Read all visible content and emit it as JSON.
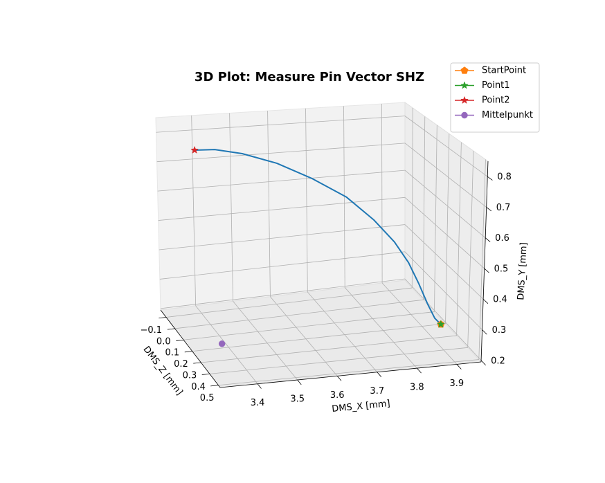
{
  "chart_data": {
    "type": "line3d",
    "title": "3D Plot: Measure Pin Vector SHZ",
    "xlabel": "DMS_X [mm]",
    "ylabel": "DMS_Y [mm]",
    "zlabel": "DMS_Z [mm]",
    "xlim": [
      3.306,
      3.961
    ],
    "ylim": [
      0.195,
      0.85
    ],
    "zlim": [
      -0.164,
      0.52
    ],
    "xticks": [
      3.4,
      3.5,
      3.6,
      3.7,
      3.8,
      3.9
    ],
    "yticks": [
      0.2,
      0.3,
      0.4,
      0.5,
      0.6,
      0.7,
      0.8
    ],
    "zticks": [
      {
        "value": -0.1,
        "label": "−0.1"
      },
      {
        "value": 0,
        "label": "0.0"
      },
      0.1,
      0.2,
      0.3,
      0.4,
      0.5
    ],
    "grid": true,
    "legend_loc": "upper right",
    "series": [
      {
        "color": "#1f77b4",
        "x": [
          3.373,
          3.417,
          3.479,
          3.559,
          3.639,
          3.718,
          3.779,
          3.823,
          3.85,
          3.867,
          3.881,
          3.89,
          3.896
        ],
        "y": [
          0.772,
          0.78,
          0.771,
          0.742,
          0.695,
          0.636,
          0.564,
          0.496,
          0.435,
          0.375,
          0.317,
          0.282,
          0.274
        ],
        "z": [
          -0.027,
          0.007,
          0.041,
          0.075,
          0.11,
          0.144,
          0.178,
          0.212,
          0.246,
          0.281,
          0.315,
          0.349,
          0.383
        ]
      },
      {
        "name": "StartPoint",
        "color": "#ff7f0e",
        "marker": "p",
        "x": [
          3.896
        ],
        "y": [
          0.274
        ],
        "z": [
          0.383
        ]
      },
      {
        "name": "Point1",
        "color": "#2ca02c",
        "marker": "*",
        "x": [
          3.896
        ],
        "y": [
          0.274
        ],
        "z": [
          0.383
        ]
      },
      {
        "name": "Point2",
        "color": "#d62728",
        "marker": "*",
        "x": [
          3.373
        ],
        "y": [
          0.772
        ],
        "z": [
          -0.027
        ]
      },
      {
        "name": "Mittelpunkt",
        "color": "#9467bd",
        "marker": "o",
        "x": [
          3.388
        ],
        "y": [
          0.2
        ],
        "z": [
          0.178
        ]
      }
    ]
  }
}
